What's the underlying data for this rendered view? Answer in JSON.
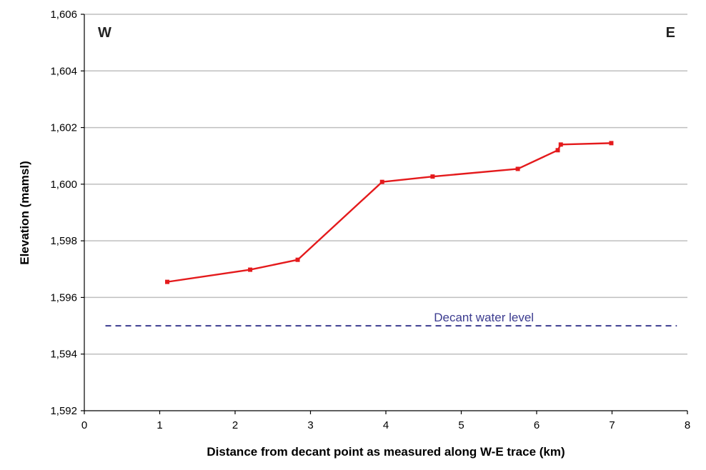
{
  "chart_data": {
    "type": "line",
    "title": "",
    "xlabel": "Distance from decant point as measured along W-E trace (km)",
    "ylabel": "Elevation (mamsl)",
    "xlim": [
      0,
      8
    ],
    "ylim": [
      1592,
      1606
    ],
    "x_ticks": [
      0,
      1,
      2,
      3,
      4,
      5,
      6,
      7,
      8
    ],
    "x_tick_labels": [
      "0",
      "1",
      "2",
      "3",
      "4",
      "5",
      "6",
      "7",
      "8"
    ],
    "y_ticks": [
      1592,
      1594,
      1596,
      1598,
      1600,
      1602,
      1604,
      1606
    ],
    "y_tick_labels": [
      "1,592",
      "1,594",
      "1,596",
      "1,598",
      "1,600",
      "1,602",
      "1,604",
      "1,606"
    ],
    "grid": "horizontal",
    "series": [
      {
        "color": "#e41a1c",
        "x": [
          1.1,
          2.2,
          2.83,
          3.95,
          4.62,
          5.75,
          6.28,
          6.32,
          6.99
        ],
        "y": [
          1596.55,
          1596.98,
          1597.33,
          1600.08,
          1600.27,
          1600.54,
          1601.2,
          1601.4,
          1601.45
        ]
      }
    ],
    "reference_line": {
      "label": "Decant water level",
      "y": 1595.0,
      "color": "#3b3b8f",
      "style": "dashed"
    },
    "annotations": {
      "west": "W",
      "east": "E"
    }
  }
}
